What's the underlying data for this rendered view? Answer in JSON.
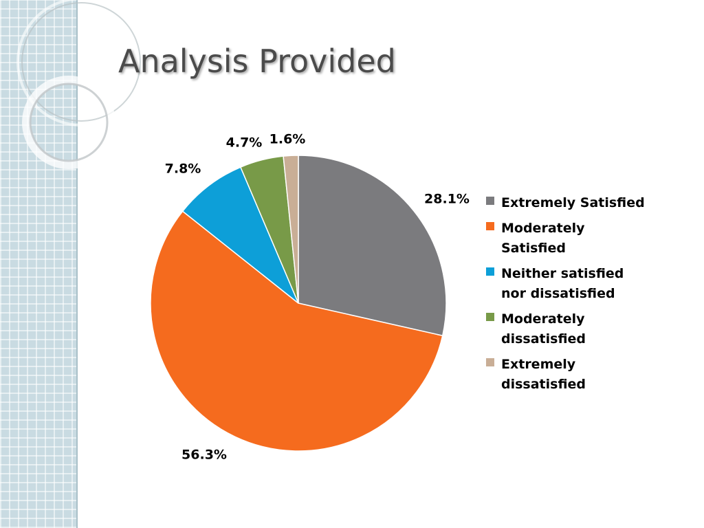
{
  "title": "Analysis Provided",
  "colors": {
    "extremely_satisfied": "#7b7b7e",
    "moderately_satisfied": "#f56b1e",
    "neither": "#0d9fd8",
    "moderately_dissatisfied": "#789a48",
    "extremely_dissatisfied": "#c9ae96"
  },
  "chart_data": {
    "type": "pie",
    "title": "",
    "start_angle_deg": 0,
    "direction": "clockwise",
    "legend_position": "right",
    "slices": [
      {
        "label": "Extremely Satisfied",
        "value": 28.1,
        "display": "28.1%",
        "color": "#7b7b7e"
      },
      {
        "label": "Moderately Satisfied",
        "value": 56.3,
        "display": "56.3%",
        "color": "#f56b1e"
      },
      {
        "label": "Neither satisfied nor dissatisfied",
        "value": 7.8,
        "display": "7.8%",
        "color": "#0d9fd8"
      },
      {
        "label": "Moderately dissatisfied",
        "value": 4.7,
        "display": "4.7%",
        "color": "#789a48"
      },
      {
        "label": "Extremely dissatisfied",
        "value": 1.6,
        "display": "1.6%",
        "color": "#c9ae96"
      }
    ]
  }
}
